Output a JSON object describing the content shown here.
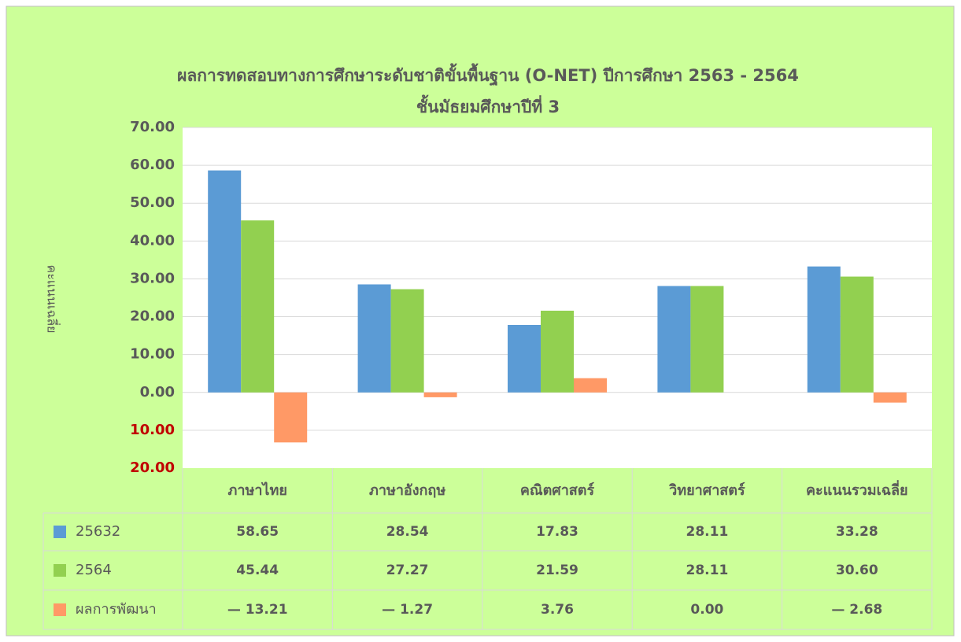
{
  "chart_data": {
    "type": "bar",
    "title": "ผลการทดสอบทางการศึกษาระดับชาติขั้นพื้นฐาน (O-NET) ปีการศึกษา 2563 - 2564",
    "subtitle": "ชั้นมัธยมศึกษาปีที่ 3",
    "y_label": "คะแนนเฉลี่ย",
    "categories": [
      "ภาษาไทย",
      "ภาษาอังกฤษ",
      "คณิตศาสตร์",
      "วิทยาศาสตร์",
      "คะแนนรวมเฉลี่ย"
    ],
    "series": [
      {
        "name": "25632",
        "color": "#5b9bd5",
        "values": [
          58.65,
          28.54,
          17.83,
          28.11,
          33.28
        ],
        "value_labels": [
          "58.65",
          "28.54",
          "17.83",
          "28.11",
          "33.28"
        ]
      },
      {
        "name": "2564",
        "color": "#92d050",
        "values": [
          45.44,
          27.27,
          21.59,
          28.11,
          30.6
        ],
        "value_labels": [
          "45.44",
          "27.27",
          "21.59",
          "28.11",
          "30.60"
        ]
      },
      {
        "name": "ผลการพัฒนา",
        "color": "#ff9966",
        "values": [
          -13.21,
          -1.27,
          3.76,
          0,
          -2.68
        ],
        "value_labels": [
          "— 13.21",
          "— 1.27",
          "3.76",
          "0.00",
          "— 2.68"
        ]
      }
    ],
    "ylim": [
      -20,
      70
    ],
    "yticks": [
      {
        "value": 70,
        "label": "70.00"
      },
      {
        "value": 60,
        "label": "60.00"
      },
      {
        "value": 50,
        "label": "50.00"
      },
      {
        "value": 40,
        "label": "40.00"
      },
      {
        "value": 30,
        "label": "30.00"
      },
      {
        "value": 20,
        "label": "20.00"
      },
      {
        "value": 10,
        "label": "10.00"
      },
      {
        "value": 0,
        "label": "0.00"
      },
      {
        "value": -10,
        "label": "10.00"
      },
      {
        "value": -20,
        "label": "20.00"
      }
    ],
    "negative_tick_color": "#c00000",
    "grid": true,
    "data_table": true
  }
}
